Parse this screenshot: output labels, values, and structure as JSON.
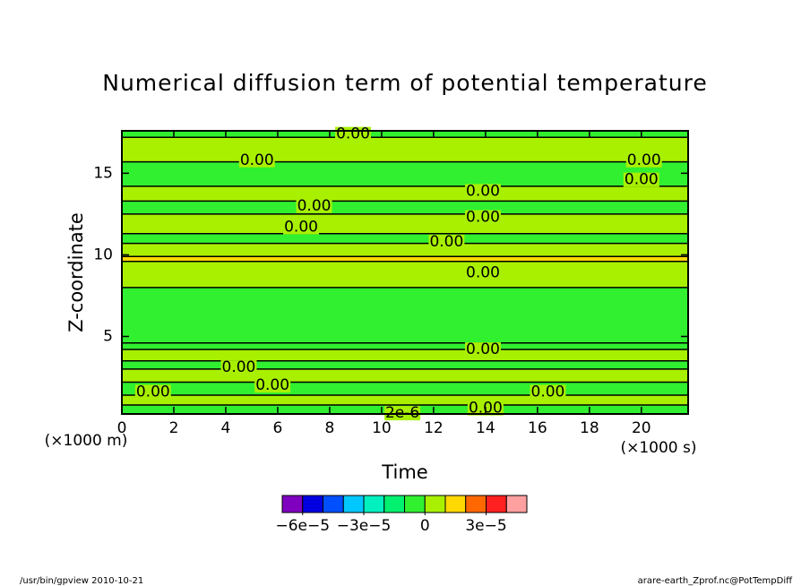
{
  "chart_data": {
    "type": "contour",
    "title": "Numerical diffusion term of potential temperature",
    "xlabel": "Time",
    "ylabel": "Z-coordinate",
    "x_unit": "(×1000 s)",
    "y_unit": "(×1000 m)",
    "xlim": [
      0,
      21.8
    ],
    "ylim": [
      0.25,
      17.6
    ],
    "xticks": [
      0,
      2,
      4,
      6,
      8,
      10,
      12,
      14,
      16,
      18,
      20
    ],
    "yticks": [
      5,
      10,
      15
    ],
    "field": [
      {
        "z": [
          0.25,
          0.8
        ],
        "value": -5e-06
      },
      {
        "z": [
          0.8,
          1.4
        ],
        "value": 5e-06
      },
      {
        "z": [
          1.4,
          2.2
        ],
        "value": -5e-06
      },
      {
        "z": [
          2.2,
          3.0
        ],
        "value": 5e-06
      },
      {
        "z": [
          3.0,
          3.5
        ],
        "value": -5e-06
      },
      {
        "z": [
          3.5,
          4.2
        ],
        "value": 5e-06
      },
      {
        "z": [
          4.2,
          4.6
        ],
        "value": -5e-06
      },
      {
        "z": [
          4.6,
          8.0
        ],
        "value": -5e-06
      },
      {
        "z": [
          8.0,
          9.6
        ],
        "value": 5e-06
      },
      {
        "z": [
          9.6,
          9.9
        ],
        "value": 1.5e-05
      },
      {
        "z": [
          9.9,
          10.7
        ],
        "value": 5e-06
      },
      {
        "z": [
          10.7,
          11.3
        ],
        "value": -5e-06
      },
      {
        "z": [
          11.3,
          12.5
        ],
        "value": 5e-06
      },
      {
        "z": [
          12.5,
          13.3
        ],
        "value": -5e-06
      },
      {
        "z": [
          13.3,
          14.2
        ],
        "value": 5e-06
      },
      {
        "z": [
          14.2,
          15.7
        ],
        "value": -5e-06
      },
      {
        "z": [
          15.7,
          17.2
        ],
        "value": 5e-06
      },
      {
        "z": [
          17.2,
          17.6
        ],
        "value": -5e-06
      }
    ],
    "contour_labels": [
      {
        "text": "0.00",
        "x": 8.9,
        "z": 17.4
      },
      {
        "text": "0.00",
        "x": 5.2,
        "z": 15.8
      },
      {
        "text": "0.00",
        "x": 20.1,
        "z": 15.8
      },
      {
        "text": "0.00",
        "x": 20.0,
        "z": 14.6
      },
      {
        "text": "0.00",
        "x": 13.9,
        "z": 13.9
      },
      {
        "text": "0.00",
        "x": 7.4,
        "z": 13.0
      },
      {
        "text": "0.00",
        "x": 13.9,
        "z": 12.3
      },
      {
        "text": "0.00",
        "x": 6.9,
        "z": 11.7
      },
      {
        "text": "0.00",
        "x": 12.5,
        "z": 10.8
      },
      {
        "text": "0.00",
        "x": 13.9,
        "z": 8.9
      },
      {
        "text": "0.00",
        "x": 13.9,
        "z": 4.2
      },
      {
        "text": "0.00",
        "x": 4.5,
        "z": 3.1
      },
      {
        "text": "0.00",
        "x": 5.8,
        "z": 2.0
      },
      {
        "text": "0.00",
        "x": 1.2,
        "z": 1.6
      },
      {
        "text": "0.00",
        "x": 16.4,
        "z": 1.6
      },
      {
        "text": "0.00",
        "x": 14.0,
        "z": 0.6
      },
      {
        "text": "2e-6",
        "x": 10.8,
        "z": 0.3
      }
    ],
    "colorbar": {
      "lim": [
        -7e-05,
        5e-05
      ],
      "colors": [
        "#8000c0",
        "#0000e0",
        "#0050ff",
        "#00c8ff",
        "#00f0c0",
        "#00f070",
        "#30f030",
        "#a8f000",
        "#ffd800",
        "#ff6800",
        "#ff2020",
        "#ffa0a0"
      ],
      "ticks": [
        {
          "value": -6e-05,
          "label": "−6e−5"
        },
        {
          "value": -3e-05,
          "label": "−3e−5"
        },
        0,
        {
          "value": 3e-05,
          "label": "3e−5"
        }
      ]
    },
    "footer_left": "/usr/bin/gpview  2010-10-21",
    "footer_right": "arare-earth_Zprof.nc@PotTempDiff"
  }
}
